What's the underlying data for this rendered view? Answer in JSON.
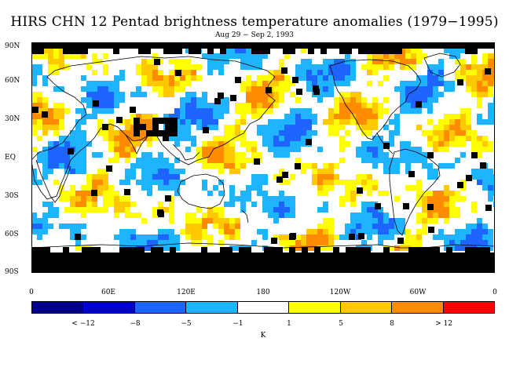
{
  "title": "HIRS CHN 12 Pentad brightness temperature anomalies (1979−1995)",
  "subtitle": "Aug 29 − Sep 2, 1993",
  "lat_labels": [
    "90N",
    "60N",
    "30N",
    "EQ",
    "30S",
    "60S",
    "90S"
  ],
  "lon_labels": [
    "0",
    "60E",
    "120E",
    "180",
    "120W",
    "60W",
    "0"
  ],
  "colorbar": {
    "colors": [
      "#00008b",
      "#0000cd",
      "#1e64ff",
      "#1eb4ff",
      "#ffffff",
      "#ffff00",
      "#ffc800",
      "#ff8c00",
      "#ff0000"
    ],
    "labels": [
      "< −12",
      "−8",
      "−5",
      "−1",
      "1",
      "5",
      "8",
      "> 12"
    ],
    "unit": "K"
  },
  "map_colors": {
    "cold_light": "#1eb4ff",
    "cold_mid": "#1e64ff",
    "warm_light": "#ffff00",
    "warm_mid": "#ffc800",
    "warm_strong": "#ff8c00",
    "missing": "#000000"
  }
}
